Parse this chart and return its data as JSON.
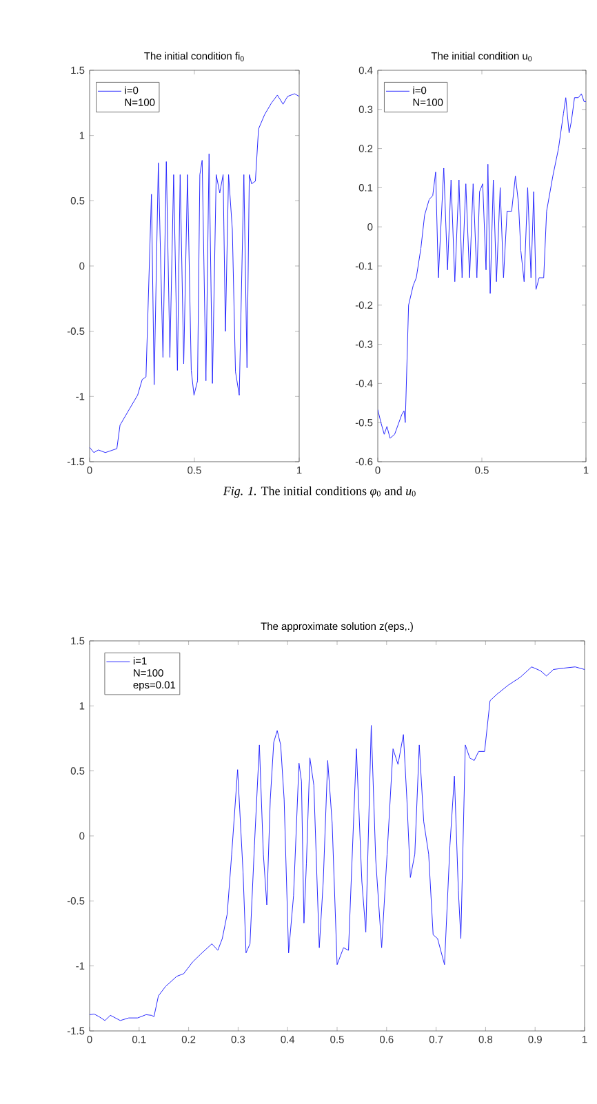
{
  "chart_data": [
    {
      "type": "line",
      "title": "The initial condition fi$_{0}$",
      "xlim": [
        0,
        1
      ],
      "ylim": [
        -1.5,
        1.5
      ],
      "xticks": [
        0,
        0.5,
        1
      ],
      "yticks": [
        -1.5,
        -1,
        -0.5,
        0,
        0.5,
        1,
        1.5
      ],
      "legend": "top left",
      "annotations": [
        "N=100"
      ],
      "x": [
        0,
        0.02,
        0.042,
        0.075,
        0.13,
        0.145,
        0.185,
        0.229,
        0.251,
        0.269,
        0.295,
        0.308,
        0.328,
        0.35,
        0.366,
        0.383,
        0.401,
        0.419,
        0.432,
        0.449,
        0.467,
        0.485,
        0.498,
        0.515,
        0.526,
        0.537,
        0.555,
        0.57,
        0.586,
        0.604,
        0.621,
        0.637,
        0.648,
        0.663,
        0.681,
        0.696,
        0.714,
        0.736,
        0.751,
        0.762,
        0.773,
        0.791,
        0.806,
        0.835,
        0.868,
        0.896,
        0.923,
        0.945,
        0.978,
        1
      ],
      "series": [
        {
          "name": "i=0",
          "color": "#2a2aff",
          "values": [
            -1.39,
            -1.43,
            -1.41,
            -1.43,
            -1.4,
            -1.22,
            -1.11,
            -0.99,
            -0.87,
            -0.85,
            0.55,
            -0.91,
            0.79,
            -0.7,
            0.8,
            -0.7,
            0.7,
            -0.8,
            0.7,
            -0.75,
            0.7,
            -0.8,
            -0.99,
            -0.88,
            0.7,
            0.81,
            -0.88,
            0.86,
            -0.9,
            0.7,
            0.56,
            0.7,
            -0.5,
            0.7,
            0.28,
            -0.81,
            -0.99,
            0.7,
            -0.78,
            0.7,
            0.63,
            0.65,
            1.05,
            1.16,
            1.25,
            1.31,
            1.24,
            1.3,
            1.32,
            1.3
          ]
        }
      ]
    },
    {
      "type": "line",
      "title": "The initial condition u$_{0}$",
      "xlim": [
        0,
        1
      ],
      "ylim": [
        -0.6,
        0.4
      ],
      "xticks": [
        0,
        0.5,
        1
      ],
      "yticks": [
        -0.6,
        -0.5,
        -0.4,
        -0.3,
        -0.2,
        -0.1,
        0,
        0.1,
        0.2,
        0.3,
        0.4
      ],
      "legend": "top left",
      "annotations": [
        "N=100"
      ],
      "x": [
        0,
        0.015,
        0.031,
        0.044,
        0.059,
        0.081,
        0.115,
        0.126,
        0.132,
        0.148,
        0.17,
        0.185,
        0.207,
        0.225,
        0.247,
        0.264,
        0.278,
        0.291,
        0.317,
        0.335,
        0.352,
        0.37,
        0.39,
        0.405,
        0.423,
        0.441,
        0.458,
        0.476,
        0.489,
        0.504,
        0.52,
        0.529,
        0.54,
        0.555,
        0.57,
        0.588,
        0.604,
        0.621,
        0.643,
        0.661,
        0.676,
        0.687,
        0.703,
        0.72,
        0.736,
        0.749,
        0.76,
        0.775,
        0.797,
        0.811,
        0.841,
        0.868,
        0.892,
        0.903,
        0.919,
        0.93,
        0.945,
        0.963,
        0.978,
        0.991,
        1
      ],
      "series": [
        {
          "name": "i=0",
          "color": "#2a2aff",
          "values": [
            -0.467,
            -0.5,
            -0.53,
            -0.51,
            -0.54,
            -0.53,
            -0.48,
            -0.47,
            -0.5,
            -0.2,
            -0.15,
            -0.13,
            -0.055,
            0.03,
            0.07,
            0.08,
            0.14,
            -0.13,
            0.15,
            -0.11,
            0.12,
            -0.14,
            0.12,
            -0.13,
            0.11,
            -0.13,
            0.11,
            -0.13,
            0.09,
            0.11,
            -0.11,
            0.16,
            -0.17,
            0.12,
            -0.14,
            0.1,
            -0.13,
            0.04,
            0.04,
            0.13,
            0.06,
            -0.06,
            -0.14,
            0.1,
            -0.13,
            0.09,
            -0.16,
            -0.13,
            -0.13,
            0.04,
            0.13,
            0.2,
            0.29,
            0.33,
            0.24,
            0.27,
            0.33,
            0.33,
            0.34,
            0.32,
            0.32
          ]
        }
      ]
    },
    {
      "type": "other",
      "title": "*Fig.   1.*   The initial conditions *φ*$_{0}$ and *u*$_{0}$"
    },
    {
      "type": "line",
      "title": "The approximate solution z(eps,.)",
      "xlim": [
        0,
        1
      ],
      "ylim": [
        -1.5,
        1.5
      ],
      "xticks": [
        0,
        0.1,
        0.2,
        0.3,
        0.4,
        0.5,
        0.6,
        0.7,
        0.8,
        0.9,
        1
      ],
      "yticks": [
        -1.5,
        -1,
        -0.5,
        0,
        0.5,
        1,
        1.5
      ],
      "legend": "top left",
      "annotations": [
        "N=100",
        "eps=0.01"
      ],
      "x": [
        0,
        0.009,
        0.019,
        0.031,
        0.042,
        0.062,
        0.079,
        0.097,
        0.114,
        0.125,
        0.13,
        0.139,
        0.153,
        0.176,
        0.19,
        0.208,
        0.227,
        0.247,
        0.259,
        0.268,
        0.278,
        0.287,
        0.299,
        0.31,
        0.316,
        0.324,
        0.333,
        0.343,
        0.351,
        0.358,
        0.365,
        0.372,
        0.379,
        0.386,
        0.393,
        0.402,
        0.412,
        0.423,
        0.428,
        0.433,
        0.438,
        0.445,
        0.453,
        0.464,
        0.472,
        0.481,
        0.49,
        0.5,
        0.513,
        0.523,
        0.539,
        0.55,
        0.558,
        0.569,
        0.578,
        0.59,
        0.601,
        0.613,
        0.623,
        0.634,
        0.641,
        0.648,
        0.657,
        0.666,
        0.675,
        0.685,
        0.694,
        0.703,
        0.717,
        0.728,
        0.737,
        0.745,
        0.75,
        0.759,
        0.768,
        0.777,
        0.786,
        0.798,
        0.809,
        0.823,
        0.846,
        0.87,
        0.893,
        0.911,
        0.923,
        0.937,
        0.957,
        0.981,
        1
      ],
      "series": [
        {
          "name": "i=1",
          "color": "#2a2aff",
          "values": [
            -1.375,
            -1.37,
            -1.39,
            -1.42,
            -1.38,
            -1.42,
            -1.4,
            -1.4,
            -1.375,
            -1.38,
            -1.39,
            -1.23,
            -1.16,
            -1.08,
            -1.06,
            -0.97,
            -0.9,
            -0.83,
            -0.88,
            -0.79,
            -0.6,
            -0.14,
            0.51,
            -0.28,
            -0.9,
            -0.83,
            -0.07,
            0.7,
            -0.14,
            -0.53,
            0.28,
            0.72,
            0.81,
            0.7,
            0.28,
            -0.9,
            -0.46,
            0.56,
            0.42,
            -0.67,
            -0.21,
            0.6,
            0.39,
            -0.86,
            -0.35,
            0.58,
            0.1,
            -0.99,
            -0.86,
            -0.88,
            0.67,
            -0.35,
            -0.74,
            0.85,
            -0.18,
            -0.86,
            -0.14,
            0.67,
            0.55,
            0.78,
            0.28,
            -0.32,
            -0.14,
            0.7,
            0.11,
            -0.14,
            -0.76,
            -0.79,
            -0.99,
            -0.07,
            0.46,
            -0.42,
            -0.79,
            0.7,
            0.6,
            0.58,
            0.65,
            0.65,
            1.04,
            1.09,
            1.16,
            1.22,
            1.3,
            1.27,
            1.23,
            1.28,
            1.29,
            1.3,
            1.28
          ]
        }
      ]
    }
  ]
}
